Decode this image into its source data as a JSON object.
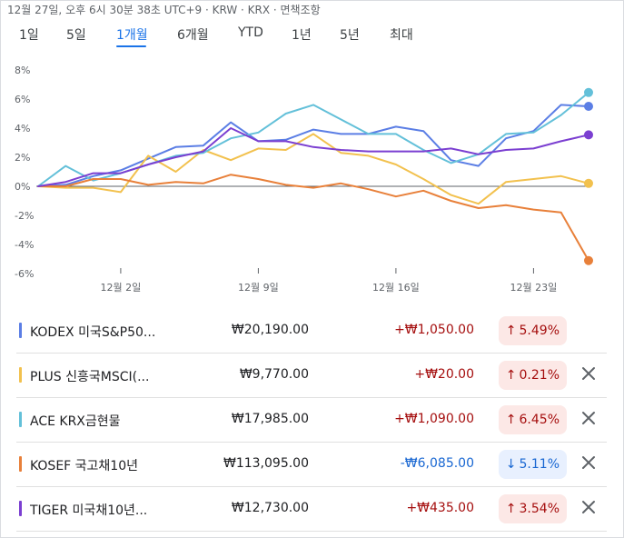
{
  "header": {
    "timestamp": "12월 27일, 오후 6시 30분 38초 UTC+9 · KRW · KRX · 면책조항"
  },
  "tabs": [
    {
      "label": "1일"
    },
    {
      "label": "5일"
    },
    {
      "label": "1개월",
      "active": true
    },
    {
      "label": "6개월"
    },
    {
      "label": "YTD"
    },
    {
      "label": "1년"
    },
    {
      "label": "5년"
    },
    {
      "label": "최대"
    }
  ],
  "chart_data": {
    "type": "line",
    "x_tick_labels": [
      "12월 2일",
      "12월 9일",
      "12월 16일",
      "12월 23일"
    ],
    "y_tick_labels": [
      "8%",
      "6%",
      "4%",
      "2%",
      "0%",
      "-2%",
      "-4%",
      "-6%"
    ],
    "ylim": [
      -6,
      8
    ],
    "grid": false,
    "zero_line": true,
    "series": [
      {
        "name": "KODEX 미국S&P50...",
        "color": "#5b7ee5",
        "values": [
          0.0,
          0.1,
          0.7,
          1.1,
          1.9,
          2.7,
          2.8,
          4.4,
          3.1,
          3.2,
          3.9,
          3.6,
          3.6,
          4.1,
          3.8,
          1.8,
          1.4,
          3.3,
          3.8,
          5.6,
          5.5
        ]
      },
      {
        "name": "PLUS 신흥국MSCI(...",
        "color": "#f2c14e",
        "values": [
          0.0,
          -0.1,
          -0.1,
          -0.4,
          2.1,
          1.0,
          2.5,
          1.8,
          2.6,
          2.5,
          3.6,
          2.3,
          2.1,
          1.5,
          0.5,
          -0.6,
          -1.2,
          0.3,
          0.5,
          0.7,
          0.2
        ]
      },
      {
        "name": "ACE KRX금현물",
        "color": "#63c0d9",
        "values": [
          0.0,
          1.4,
          0.4,
          0.9,
          1.5,
          2.1,
          2.3,
          3.3,
          3.7,
          5.0,
          5.6,
          4.6,
          3.6,
          3.6,
          2.5,
          1.6,
          2.2,
          3.6,
          3.7,
          4.9,
          6.45
        ]
      },
      {
        "name": "KOSEF 국고채10년",
        "color": "#e8803a",
        "values": [
          0.0,
          0.0,
          0.5,
          0.5,
          0.1,
          0.3,
          0.2,
          0.8,
          0.5,
          0.1,
          -0.1,
          0.2,
          -0.2,
          -0.7,
          -0.3,
          -1.0,
          -1.5,
          -1.3,
          -1.6,
          -1.8,
          -5.11
        ]
      },
      {
        "name": "TIGER 미국채10년...",
        "color": "#7b3fd1",
        "values": [
          0.0,
          0.3,
          0.9,
          0.9,
          1.5,
          2.0,
          2.4,
          4.0,
          3.1,
          3.1,
          2.7,
          2.5,
          2.4,
          2.4,
          2.4,
          2.6,
          2.2,
          2.5,
          2.6,
          3.1,
          3.54
        ]
      }
    ]
  },
  "rows": [
    {
      "name": "KODEX 미국S&P50...",
      "color": "#5b7ee5",
      "price": "₩20,190.00",
      "change": "+₩1,050.00",
      "pct": "5.49%",
      "direction": "up",
      "closable": false
    },
    {
      "name": "PLUS 신흥국MSCI(...",
      "color": "#f2c14e",
      "price": "₩9,770.00",
      "change": "+₩20.00",
      "pct": "0.21%",
      "direction": "up",
      "closable": true
    },
    {
      "name": "ACE KRX금현물",
      "color": "#63c0d9",
      "price": "₩17,985.00",
      "change": "+₩1,090.00",
      "pct": "6.45%",
      "direction": "up",
      "closable": true
    },
    {
      "name": "KOSEF 국고채10년",
      "color": "#e8803a",
      "price": "₩113,095.00",
      "change": "-₩6,085.00",
      "pct": "5.11%",
      "direction": "down",
      "closable": true
    },
    {
      "name": "TIGER 미국채10년...",
      "color": "#7b3fd1",
      "price": "₩12,730.00",
      "change": "+₩435.00",
      "pct": "3.54%",
      "direction": "up",
      "closable": true
    }
  ],
  "icons": {
    "up_arrow": "up-arrow-icon",
    "down_arrow": "down-arrow-icon",
    "close": "close-icon"
  }
}
